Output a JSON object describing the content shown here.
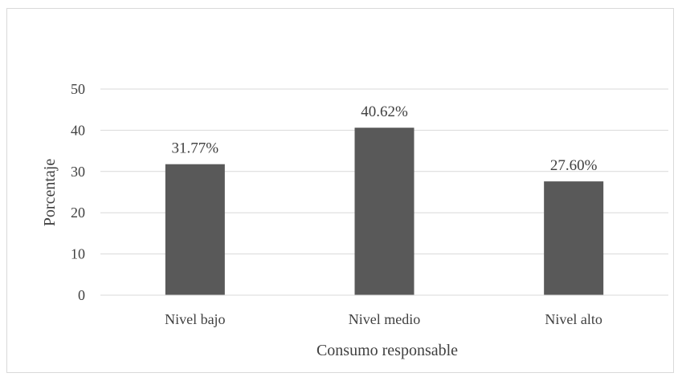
{
  "chart_data": {
    "type": "bar",
    "categories": [
      "Nivel bajo",
      "Nivel medio",
      "Nivel alto"
    ],
    "values": [
      31.77,
      40.62,
      27.6
    ],
    "data_labels": [
      "31.77%",
      "40.62%",
      "27.60%"
    ],
    "title": "",
    "xlabel": "Consumo responsable",
    "ylabel": "Porcentaje",
    "ylim": [
      0,
      50
    ],
    "yticks": [
      "0",
      "10",
      "20",
      "30",
      "40",
      "50"
    ],
    "grid": true,
    "legend": "none",
    "colors": {
      "bar": "#595959",
      "grid": "#d9d9d9",
      "text": "#404040"
    }
  }
}
